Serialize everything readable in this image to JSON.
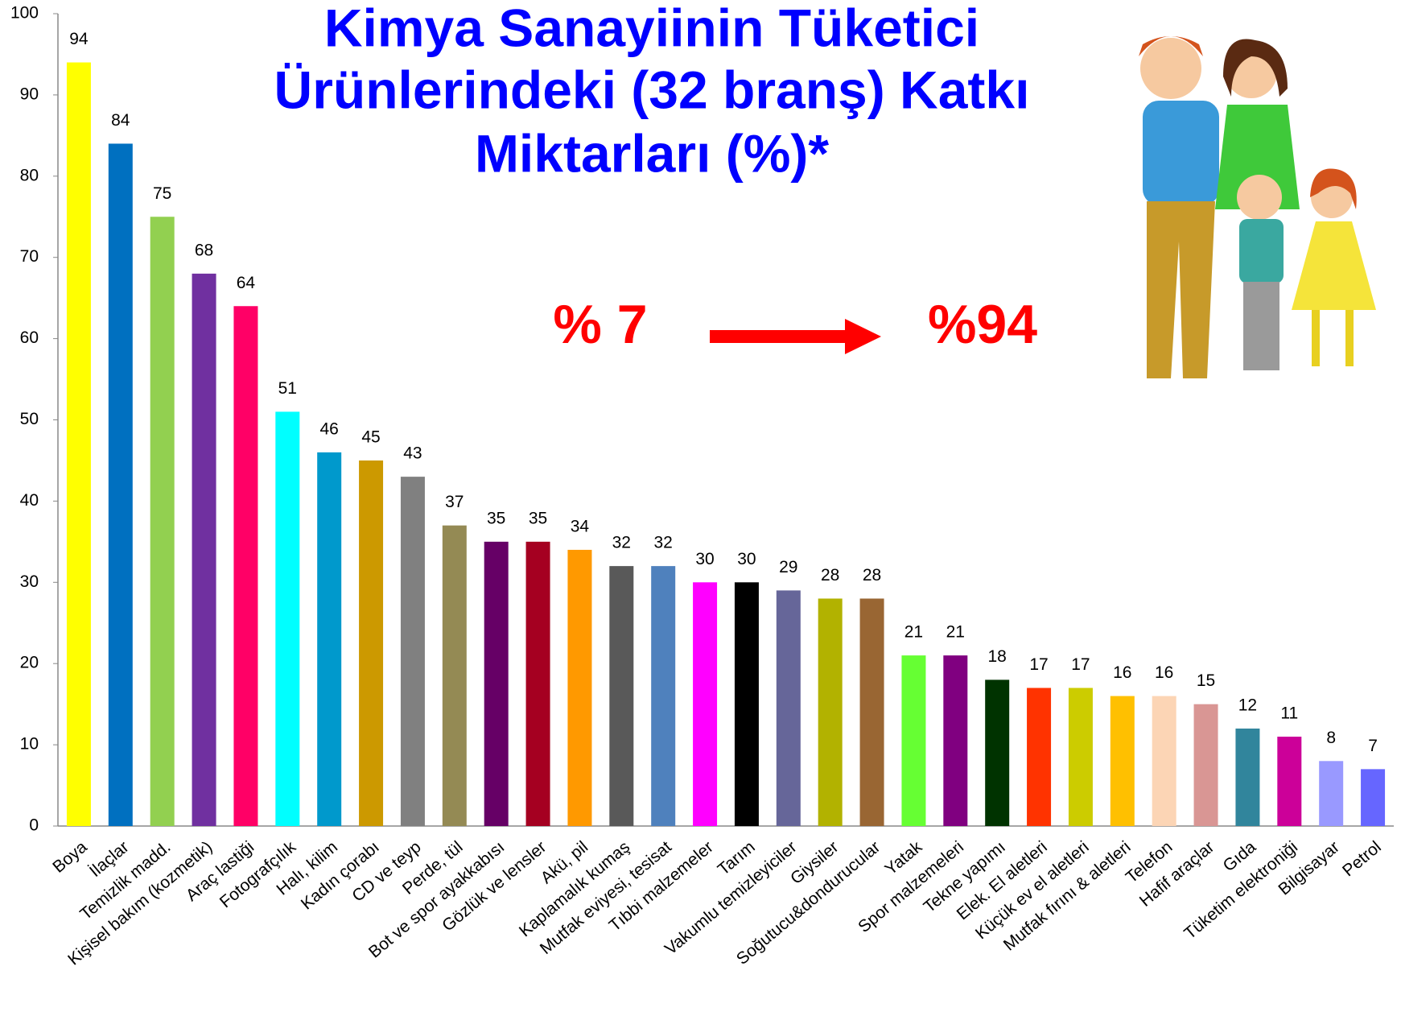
{
  "chart_data": {
    "type": "bar",
    "title": [
      "Kimya Sanayiinin Tüketici",
      "Ürünlerindeki (32 branş) Katkı",
      "Miktarları (%)*"
    ],
    "annotations": [
      "% 7",
      "%94"
    ],
    "categories": [
      "Boya",
      "İlaçlar",
      "Temizlik madd.",
      "Kişisel bakım (kozmetik)",
      "Araç lastiği",
      "Fotografçılık",
      "Halı, kilim",
      "Kadın çorabı",
      "CD ve teyp",
      "Perde, tül",
      "Bot ve spor ayakkabısı",
      "Gözlük ve lensler",
      "Akü, pil",
      "Kaplamalık kumaş",
      "Mutfak eviyesi, tesisat",
      "Tıbbi malzemeler",
      "Tarım",
      "Vakumlu temizleyiciler",
      "Giysiler",
      "Soğutucu&dondurucular",
      "Yatak",
      "Spor malzemeleri",
      "Tekne yapımı",
      "Elek. El aletleri",
      "Küçük ev el aletleri",
      "Mutfak fırını & aletleri",
      "Telefon",
      "Hafif araçlar",
      "Gıda",
      "Tüketim elektroniği",
      "Bilgisayar",
      "Petrol"
    ],
    "values": [
      94,
      84,
      75,
      68,
      64,
      51,
      46,
      45,
      43,
      37,
      35,
      35,
      34,
      32,
      32,
      30,
      30,
      29,
      28,
      28,
      21,
      21,
      18,
      17,
      17,
      16,
      16,
      15,
      12,
      11,
      8,
      7
    ],
    "colors": [
      "#ffff00",
      "#0070c0",
      "#92d050",
      "#7030a0",
      "#ff0066",
      "#00ffff",
      "#0099cc",
      "#cc9900",
      "#808080",
      "#948a54",
      "#660066",
      "#a50021",
      "#ff9900",
      "#595959",
      "#4f81bd",
      "#ff00ff",
      "#000000",
      "#666699",
      "#b2b200",
      "#996633",
      "#66ff33",
      "#800080",
      "#003300",
      "#ff3300",
      "#cccc00",
      "#ffc000",
      "#fcd5b5",
      "#d99694",
      "#31859c",
      "#cc0099",
      "#9999ff",
      "#6666ff"
    ],
    "ylim": [
      0,
      100
    ],
    "yticks": [
      0,
      10,
      20,
      30,
      40,
      50,
      60,
      70,
      80,
      90,
      100
    ],
    "grid": false
  }
}
